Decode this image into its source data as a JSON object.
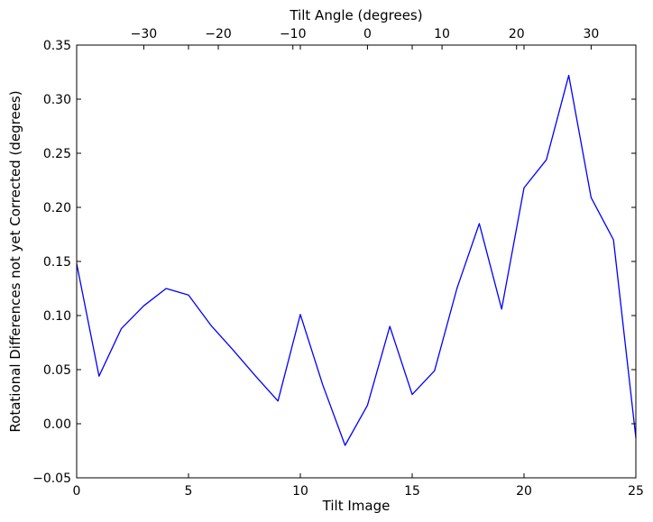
{
  "chart_data": {
    "type": "line",
    "title": "",
    "xlabel": "Tilt Image",
    "ylabel": "Rotational Differences not yet Corrected (degrees)",
    "top_xlabel": "Tilt Angle (degrees)",
    "xlim": [
      0,
      25
    ],
    "ylim": [
      -0.05,
      0.35
    ],
    "xticks": [
      0,
      5,
      10,
      15,
      20,
      25
    ],
    "xtick_labels": [
      "0",
      "5",
      "10",
      "15",
      "20",
      "25"
    ],
    "yticks": [
      -0.05,
      0.0,
      0.05,
      0.1,
      0.15,
      0.2,
      0.25,
      0.3,
      0.35
    ],
    "ytick_labels": [
      "−0.05",
      "0.00",
      "0.05",
      "0.10",
      "0.15",
      "0.20",
      "0.25",
      "0.30",
      "0.35"
    ],
    "top_xticks": [
      -30,
      -20,
      -10,
      0,
      10,
      20,
      30
    ],
    "top_xtick_labels": [
      "−30",
      "−20",
      "−10",
      "0",
      "10",
      "20",
      "30"
    ],
    "top_xlim": [
      -39,
      36
    ],
    "grid": false,
    "series": [
      {
        "color": "#0000ff",
        "x": [
          0,
          1,
          2,
          3,
          4,
          5,
          6,
          7,
          8,
          9,
          10,
          11,
          12,
          13,
          14,
          15,
          16,
          17,
          18,
          19,
          20,
          21,
          22,
          23,
          24,
          25
        ],
        "y": [
          0.148,
          0.044,
          0.088,
          0.109,
          0.125,
          0.119,
          0.091,
          0.068,
          0.044,
          0.021,
          0.101,
          0.036,
          -0.02,
          0.017,
          0.09,
          0.027,
          0.049,
          0.125,
          0.185,
          0.106,
          0.218,
          0.244,
          0.322,
          0.209,
          0.17,
          -0.013
        ]
      }
    ]
  }
}
